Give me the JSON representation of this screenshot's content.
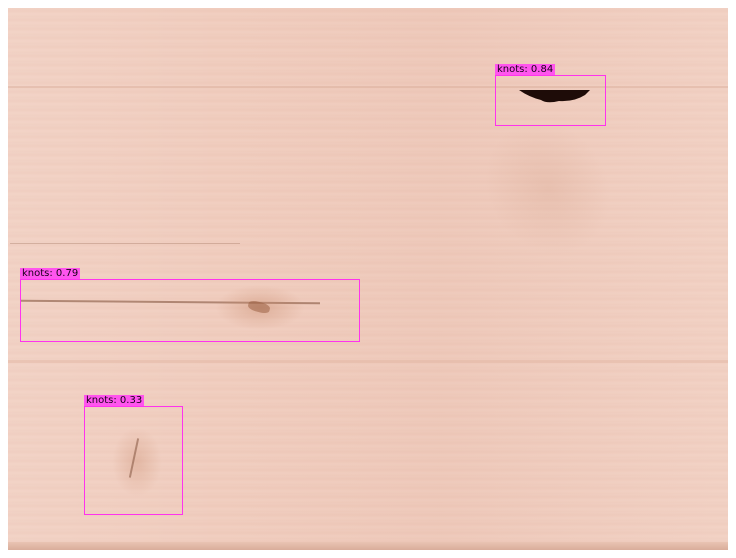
{
  "detections": [
    {
      "label": "knots: 0.84"
    },
    {
      "label": "knots: 0.79"
    },
    {
      "label": "knots: 0.33"
    }
  ],
  "colors": {
    "box": "#ff33ee",
    "label_bg": "#ff55ee",
    "wood": "#efcbbc"
  }
}
